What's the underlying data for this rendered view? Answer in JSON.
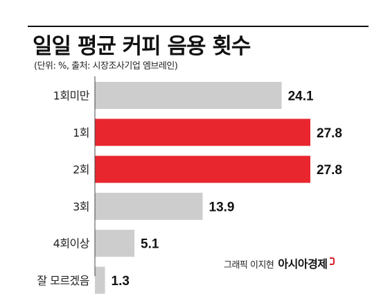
{
  "title": "일일 평균 커피 음용 횟수",
  "subtitle": "(단위: %, 출처: 시장조사기업 엠브레인)",
  "credit": {
    "author": "그래픽 이지현",
    "brand": "아시아경제"
  },
  "colors": {
    "bar_default": "#cdcdcd",
    "bar_highlight": "#e8262e",
    "axis": "#444444"
  },
  "chart_data": {
    "type": "bar",
    "orientation": "horizontal",
    "categories": [
      "1회미만",
      "1회",
      "2회",
      "3회",
      "4회이상",
      "잘 모르겠음"
    ],
    "values": [
      24.1,
      27.8,
      27.8,
      13.9,
      5.1,
      1.3
    ],
    "value_labels": [
      "24.1",
      "27.8",
      "27.8",
      "13.9",
      "5.1",
      "1.3"
    ],
    "highlighted": [
      false,
      true,
      true,
      false,
      false,
      false
    ],
    "xlim": [
      0,
      30
    ],
    "grid": false
  }
}
